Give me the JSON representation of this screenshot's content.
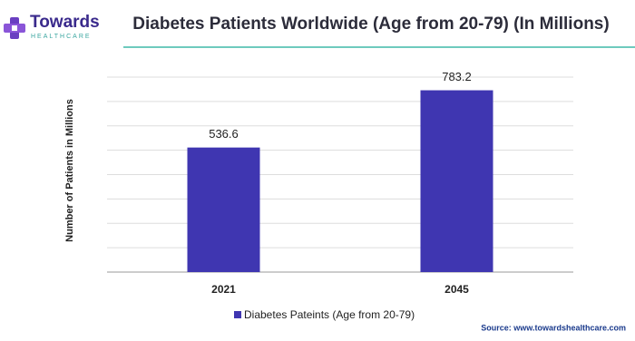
{
  "brand": {
    "name": "Towards",
    "tagline": "HEALTHCARE"
  },
  "chart_data": {
    "type": "bar",
    "title": "Diabetes Patients Worldwide (Age from 20-79) (In Millions)",
    "y_label": "Number of Patients in Millions",
    "categories": [
      "2021",
      "2045"
    ],
    "series": [
      {
        "name": "Diabetes Pateints (Age from 20-79)",
        "color": "#3f36b1",
        "values": [
          536.6,
          783.2
        ]
      }
    ],
    "ylim": [
      0,
      840
    ],
    "yticks": [
      0,
      105,
      210,
      315,
      420,
      525,
      630,
      735,
      840
    ],
    "grid": true,
    "source": "Source: www.towardshealthcare.com"
  }
}
